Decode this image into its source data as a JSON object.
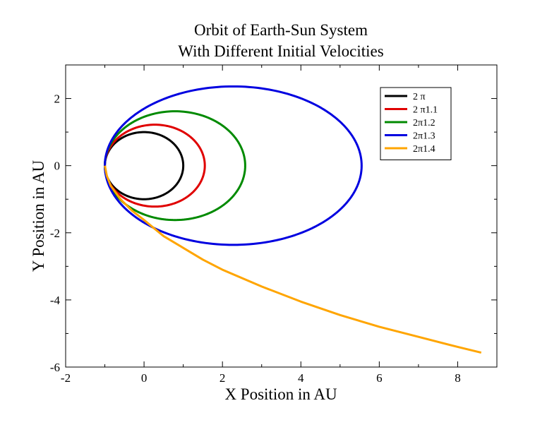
{
  "chart_data": {
    "type": "line",
    "title": "Orbit of Earth-Sun System",
    "subtitle": "With Different Initial Velocities",
    "xlabel": "X Position in AU",
    "ylabel": "Y Position in AU",
    "xlim": [
      -2,
      9
    ],
    "ylim": [
      -6,
      3
    ],
    "x_ticks": [
      -2,
      0,
      2,
      4,
      6,
      8
    ],
    "y_ticks": [
      -6,
      -4,
      -2,
      0,
      2
    ],
    "x_minor_step": 1,
    "y_minor_step": 1,
    "grid": false,
    "legend_position": "top-right",
    "series": [
      {
        "name": "2 π",
        "color": "#000000",
        "kind": "ellipse",
        "x_min": -1,
        "x_max": 1,
        "y_half": 1.0
      },
      {
        "name": "2 π1.1",
        "color": "#e00000",
        "kind": "ellipse",
        "x_min": -1,
        "x_max": 1.55,
        "y_half": 1.22
      },
      {
        "name": "2π1.2",
        "color": "#008a00",
        "kind": "ellipse",
        "x_min": -1,
        "x_max": 2.58,
        "y_half": 1.62
      },
      {
        "name": "2π1.3",
        "color": "#0000e0",
        "kind": "ellipse",
        "x_min": -1,
        "x_max": 5.55,
        "y_half": 2.36
      },
      {
        "name": "2π1.4",
        "color": "#ffa500",
        "kind": "path",
        "x": [
          -1,
          -0.95,
          -0.85,
          -0.6,
          -0.3,
          0,
          0.5,
          1,
          1.5,
          2,
          3,
          4,
          5,
          6,
          7,
          8,
          8.6
        ],
        "y": [
          0,
          -0.3,
          -0.6,
          -1.0,
          -1.35,
          -1.62,
          -2.1,
          -2.45,
          -2.8,
          -3.1,
          -3.6,
          -4.05,
          -4.45,
          -4.8,
          -5.1,
          -5.4,
          -5.57
        ]
      }
    ]
  }
}
